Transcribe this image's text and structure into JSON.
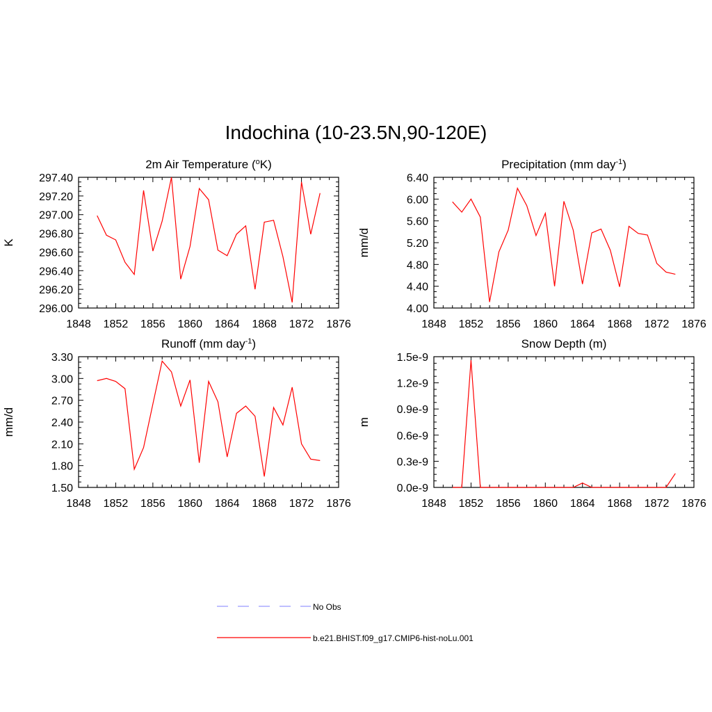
{
  "figure": {
    "title": "Indochina (10-23.5N,90-120E)"
  },
  "legend": {
    "entries": [
      {
        "label": "No Obs",
        "color": "#9999ff",
        "dash": true
      },
      {
        "label": "b.e21.BHIST.f09_g17.CMIP6-hist-noLu.001",
        "color": "#ff0000",
        "dash": false
      }
    ]
  },
  "chart_data": [
    {
      "id": "temp",
      "type": "line",
      "title": "2m Air Temperature (",
      "title_sup": "o",
      "title_after": "K)",
      "ylabel": "K",
      "xlim": [
        1848,
        1876
      ],
      "ylim": [
        296.0,
        297.4
      ],
      "xticks": [
        "1848",
        "1852",
        "1856",
        "1860",
        "1864",
        "1868",
        "1872",
        "1876"
      ],
      "yticks": [
        "296.00",
        "296.20",
        "296.40",
        "296.60",
        "296.80",
        "297.00",
        "297.20",
        "297.40"
      ],
      "series": [
        {
          "color": "#ff0000",
          "x": [
            1850,
            1851,
            1852,
            1853,
            1854,
            1855,
            1856,
            1857,
            1858,
            1859,
            1860,
            1861,
            1862,
            1863,
            1864,
            1865,
            1866,
            1867,
            1868,
            1869,
            1870,
            1871,
            1872,
            1873,
            1874
          ],
          "y": [
            296.99,
            296.78,
            296.73,
            296.49,
            296.36,
            297.26,
            296.61,
            296.93,
            297.4,
            296.31,
            296.66,
            297.28,
            297.16,
            296.62,
            296.56,
            296.79,
            296.88,
            296.2,
            296.92,
            296.94,
            296.55,
            296.06,
            297.35,
            296.79,
            297.23
          ]
        }
      ]
    },
    {
      "id": "precip",
      "type": "line",
      "title": "Precipitation (mm day",
      "title_sup": "-1",
      "title_after": ")",
      "ylabel": "mm/d",
      "xlim": [
        1848,
        1876
      ],
      "ylim": [
        4.0,
        6.4
      ],
      "xticks": [
        "1848",
        "1852",
        "1856",
        "1860",
        "1864",
        "1868",
        "1872",
        "1876"
      ],
      "yticks": [
        "4.00",
        "4.40",
        "4.80",
        "5.20",
        "5.60",
        "6.00",
        "6.40"
      ],
      "series": [
        {
          "color": "#ff0000",
          "x": [
            1850,
            1851,
            1852,
            1853,
            1854,
            1855,
            1856,
            1857,
            1858,
            1859,
            1860,
            1861,
            1862,
            1863,
            1864,
            1865,
            1866,
            1867,
            1868,
            1869,
            1870,
            1871,
            1872,
            1873,
            1874
          ],
          "y": [
            5.95,
            5.76,
            6.0,
            5.67,
            4.11,
            5.03,
            5.43,
            6.2,
            5.88,
            5.33,
            5.74,
            4.4,
            5.96,
            5.43,
            4.44,
            5.38,
            5.45,
            5.06,
            4.39,
            5.5,
            5.37,
            5.34,
            4.82,
            4.66,
            4.62
          ]
        }
      ]
    },
    {
      "id": "runoff",
      "type": "line",
      "title": "Runoff (mm day",
      "title_sup": "-1",
      "title_after": ")",
      "ylabel": "mm/d",
      "xlim": [
        1848,
        1876
      ],
      "ylim": [
        1.5,
        3.3
      ],
      "xticks": [
        "1848",
        "1852",
        "1856",
        "1860",
        "1864",
        "1868",
        "1872",
        "1876"
      ],
      "yticks": [
        "1.50",
        "1.80",
        "2.10",
        "2.40",
        "2.70",
        "3.00",
        "3.30"
      ],
      "series": [
        {
          "color": "#ff0000",
          "x": [
            1850,
            1851,
            1852,
            1853,
            1854,
            1855,
            1856,
            1857,
            1858,
            1859,
            1860,
            1861,
            1862,
            1863,
            1864,
            1865,
            1866,
            1867,
            1868,
            1869,
            1870,
            1871,
            1872,
            1873,
            1874
          ],
          "y": [
            2.97,
            3.0,
            2.96,
            2.86,
            1.75,
            2.05,
            2.65,
            3.24,
            3.09,
            2.62,
            2.98,
            1.84,
            2.96,
            2.68,
            1.92,
            2.52,
            2.62,
            2.48,
            1.65,
            2.6,
            2.36,
            2.88,
            2.1,
            1.89,
            1.87
          ]
        }
      ]
    },
    {
      "id": "snow",
      "type": "line",
      "title": "Snow Depth (m)",
      "title_sup": "",
      "title_after": "",
      "ylabel": "m",
      "xlim": [
        1848,
        1876
      ],
      "ylim": [
        0.0,
        1.5
      ],
      "xticks": [
        "1848",
        "1852",
        "1856",
        "1860",
        "1864",
        "1868",
        "1872",
        "1876"
      ],
      "yticks": [
        "0.0e-9",
        "0.3e-9",
        "0.6e-9",
        "0.9e-9",
        "1.2e-9",
        "1.5e-9"
      ],
      "series": [
        {
          "color": "#ff0000",
          "x": [
            1850,
            1851,
            1852,
            1853,
            1854,
            1855,
            1856,
            1857,
            1858,
            1859,
            1860,
            1861,
            1862,
            1863,
            1864,
            1865,
            1866,
            1867,
            1868,
            1869,
            1870,
            1871,
            1872,
            1873,
            1874
          ],
          "y": [
            0.0,
            0.0,
            1.46,
            0.0,
            0.0,
            0.0,
            0.0,
            0.0,
            0.0,
            0.0,
            0.0,
            0.0,
            0.0,
            0.0,
            0.05,
            0.0,
            0.0,
            0.0,
            0.0,
            0.0,
            0.0,
            0.0,
            0.0,
            0.0,
            0.16
          ]
        }
      ]
    }
  ]
}
